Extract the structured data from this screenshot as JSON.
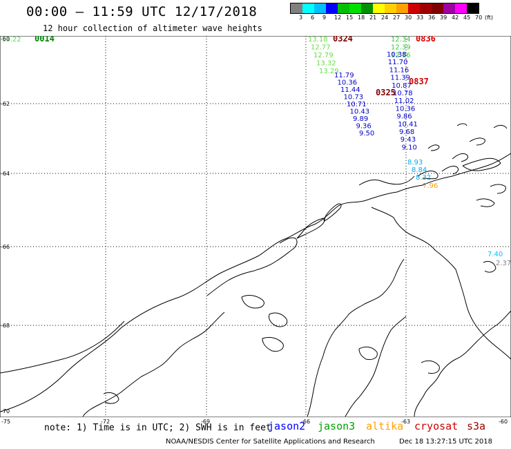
{
  "title": "00:00 – 11:59 UTC 12/17/2018",
  "subtitle": "12 hour collection of altimeter wave heights",
  "color_scale": {
    "unit_label": "(ft)",
    "ticks": [
      "3",
      "6",
      "9",
      "12",
      "15",
      "18",
      "21",
      "24",
      "27",
      "30",
      "33",
      "36",
      "39",
      "42",
      "45",
      "70"
    ],
    "colors": [
      "#808080",
      "#00ffff",
      "#00bfff",
      "#0000ff",
      "#00c000",
      "#00e000",
      "#009000",
      "#ffff00",
      "#ffd000",
      "#ffa000",
      "#d00000",
      "#a00000",
      "#800000",
      "#a000a0",
      "#ff00ff",
      "#000000"
    ]
  },
  "axes": {
    "lat_labels": [
      "-60",
      "-62",
      "-64",
      "-66",
      "-68",
      "-70"
    ],
    "lon_labels": [
      "-75",
      "-72",
      "-69",
      "-66",
      "-63",
      "-60"
    ]
  },
  "tracks": {
    "jason3_a": {
      "time": "0324",
      "values": [
        "13.18",
        "12.77",
        "12.79",
        "13.32",
        "13.29"
      ]
    },
    "jason2_a": {
      "values": [
        "11.79",
        "10.36",
        "11.44",
        "10.73",
        "10.71",
        "10.43",
        "9.89",
        "9.36",
        "9.50"
      ]
    },
    "time_0325": "0325",
    "jason3_b": {
      "time": "0836",
      "values": [
        "12.34",
        "12.39",
        "12.16"
      ]
    },
    "jason2_b": {
      "time": "0837",
      "values": [
        "10.38",
        "11.70",
        "11.16",
        "11.39",
        "10.87",
        "10.78",
        "11.02",
        "10.36",
        "9.86",
        "10.41",
        "9.68",
        "9.43",
        "9.10"
      ]
    },
    "cyan_b": {
      "values": [
        "8.93",
        "8.84",
        "8.32"
      ]
    },
    "orange_b": {
      "values": [
        "7.96"
      ]
    },
    "left_edge": {
      "value": "13.22",
      "time": "0014"
    },
    "right_edge": {
      "values": [
        "7.40",
        "2.37"
      ]
    }
  },
  "footer": {
    "note": "note: 1) Time is in UTC; 2) SWH is in feet",
    "legend": [
      {
        "label": "jason2",
        "color": "#0000ff"
      },
      {
        "label": "jason3",
        "color": "#00a000"
      },
      {
        "label": "altika",
        "color": "#ffa000"
      },
      {
        "label": "cryosat",
        "color": "#d00000"
      },
      {
        "label": "s3a",
        "color": "#a00000"
      }
    ],
    "credit": "NOAA/NESDIS Center for Satellite Applications and Research",
    "timestamp": "Dec 18 13:27:15 UTC 2018"
  }
}
